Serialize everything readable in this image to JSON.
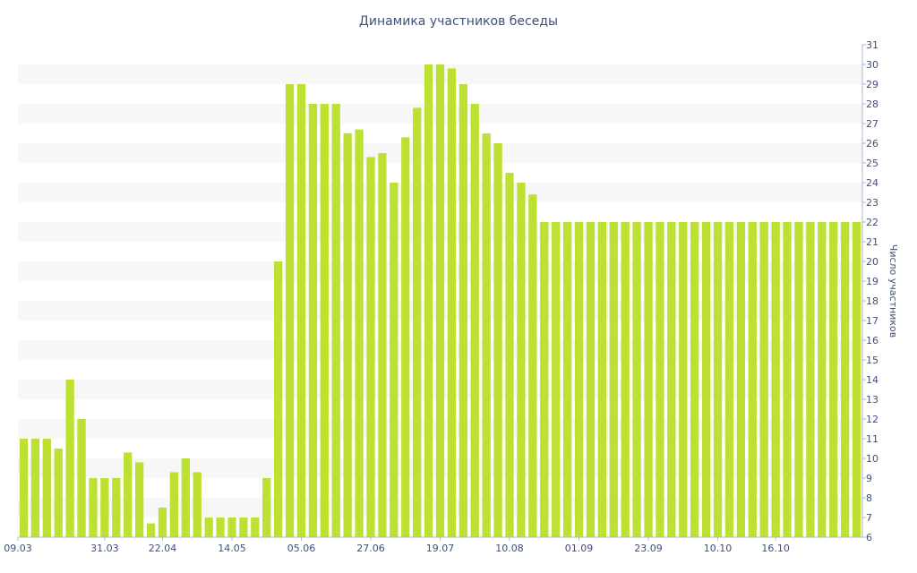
{
  "chart_data": {
    "type": "bar",
    "title": "Динамика участников беседы",
    "xlabel": "",
    "ylabel": "Число участников",
    "ylim": [
      6,
      31
    ],
    "y_ticks": [
      6,
      7,
      8,
      9,
      10,
      11,
      12,
      13,
      14,
      15,
      16,
      17,
      18,
      19,
      20,
      21,
      22,
      23,
      24,
      25,
      26,
      27,
      28,
      29,
      30,
      31
    ],
    "x_tick_labels": [
      "09.03",
      "31.03",
      "22.04",
      "14.05",
      "05.06",
      "27.06",
      "19.07",
      "10.08",
      "01.09",
      "23.09",
      "10.10",
      "16.10"
    ],
    "x_tick_index": [
      0,
      7,
      12,
      18,
      24,
      30,
      36,
      42,
      48,
      54,
      60,
      65
    ],
    "y_axis_side": "right",
    "grid": "alternating horizontal bands",
    "bar_color": "#bce132",
    "band_color": "#f7f7f7",
    "text_color": "#3e4f7a",
    "values": [
      11,
      11,
      11,
      10.5,
      14,
      12,
      9,
      9,
      9,
      10.3,
      9.8,
      6.7,
      7.5,
      9.3,
      10,
      9.3,
      7,
      7,
      7,
      7,
      7,
      9,
      20,
      29,
      29,
      28,
      28,
      28,
      26.5,
      26.7,
      25.3,
      25.5,
      24,
      26.3,
      27.8,
      30,
      30,
      29.8,
      29,
      28,
      26.5,
      26,
      24.5,
      24,
      23.4,
      22,
      22,
      22,
      22,
      22,
      22,
      22,
      22,
      22,
      22,
      22,
      22,
      22,
      22,
      22,
      22,
      22,
      22,
      22,
      22,
      22,
      22,
      22,
      22,
      22,
      22,
      22,
      22
    ]
  }
}
